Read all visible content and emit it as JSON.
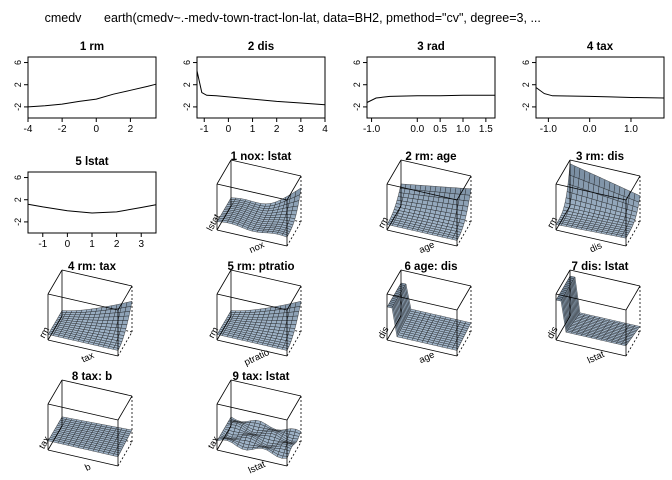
{
  "header": {
    "response": "cmedv",
    "call": "earth(cmedv~.-medv-town-tract-lon-lat, data=BH2, pmethod=\"cv\", degree=3, ..."
  },
  "chart_data": [
    {
      "type": "line",
      "title": "1  rm",
      "xlim": [
        -4,
        3.5
      ],
      "ylim": [
        -4,
        7
      ],
      "xticks": [
        "-4",
        "-2",
        "0",
        "2"
      ],
      "xtick_values": [
        -4,
        -2,
        0,
        2
      ],
      "yticks": [
        "-2",
        "2",
        "6"
      ],
      "ytick_values": [
        -2,
        2,
        6
      ],
      "x": [
        -4,
        -3,
        -2,
        -1,
        0,
        1,
        2,
        3,
        3.5
      ],
      "y": [
        -2,
        -1.8,
        -1.5,
        -1.0,
        -0.6,
        0.3,
        1.0,
        1.7,
        2.1
      ]
    },
    {
      "type": "line",
      "title": "2  dis",
      "xlim": [
        -1.3,
        4
      ],
      "ylim": [
        -4,
        7
      ],
      "xticks": [
        "-1",
        "0",
        "1",
        "2",
        "3",
        "4"
      ],
      "xtick_values": [
        -1,
        0,
        1,
        2,
        3,
        4
      ],
      "yticks": [
        "-2",
        "2",
        "6"
      ],
      "ytick_values": [
        -2,
        2,
        6
      ],
      "x": [
        -1.3,
        -1.1,
        -0.9,
        -0.5,
        0,
        1,
        2,
        3,
        4
      ],
      "y": [
        4.5,
        0.6,
        0.1,
        0.0,
        -0.2,
        -0.6,
        -1.0,
        -1.3,
        -1.6
      ]
    },
    {
      "type": "line",
      "title": "3  rad",
      "xlim": [
        -1.1,
        1.7
      ],
      "ylim": [
        -4,
        7
      ],
      "xticks": [
        "-1.0",
        "0.0",
        "0.5",
        "1.0",
        "1.5"
      ],
      "xtick_values": [
        -1,
        0,
        0.5,
        1,
        1.5
      ],
      "yticks": [
        "-2",
        "2",
        "6"
      ],
      "ytick_values": [
        -2,
        2,
        6
      ],
      "x": [
        -1.1,
        -0.9,
        -0.6,
        0,
        0.5,
        1.0,
        1.7
      ],
      "y": [
        -1.2,
        -0.4,
        -0.1,
        0.0,
        0.0,
        0.1,
        0.1
      ]
    },
    {
      "type": "line",
      "title": "4  tax",
      "xlim": [
        -1.3,
        1.8
      ],
      "ylim": [
        -4,
        7
      ],
      "xticks": [
        "-1.0",
        "0.0",
        "1.0"
      ],
      "xtick_values": [
        -1,
        0,
        1
      ],
      "yticks": [
        "-2",
        "2",
        "6"
      ],
      "ytick_values": [
        -2,
        2,
        6
      ],
      "x": [
        -1.3,
        -1.1,
        -0.9,
        0,
        0.5,
        1.0,
        1.8
      ],
      "y": [
        1.5,
        0.4,
        0.0,
        -0.1,
        -0.2,
        -0.3,
        -0.4
      ]
    },
    {
      "type": "line",
      "title": "5  lstat",
      "xlim": [
        -1.6,
        3.6
      ],
      "ylim": [
        -4,
        7
      ],
      "xticks": [
        "-1",
        "0",
        "1",
        "2",
        "3"
      ],
      "xtick_values": [
        -1,
        0,
        1,
        2,
        3
      ],
      "yticks": [
        "-2",
        "2",
        "6"
      ],
      "ytick_values": [
        -2,
        2,
        6
      ],
      "x": [
        -1.6,
        -1,
        0,
        1,
        2,
        3,
        3.6
      ],
      "y": [
        1.2,
        0.7,
        0.0,
        -0.4,
        -0.2,
        0.6,
        1.1
      ]
    },
    {
      "type": "surface",
      "title": "1 nox: lstat",
      "xlabel": "nox",
      "ylabel": "lstat",
      "shape": "flat_high_corner"
    },
    {
      "type": "surface",
      "title": "2 rm: age",
      "xlabel": "age",
      "ylabel": "rm",
      "shape": "rising_ridge"
    },
    {
      "type": "surface",
      "title": "3 rm: dis",
      "xlabel": "dis",
      "ylabel": "rm",
      "shape": "tall_wall"
    },
    {
      "type": "surface",
      "title": "4 rm: tax",
      "xlabel": "tax",
      "ylabel": "rm",
      "shape": "rising_corner"
    },
    {
      "type": "surface",
      "title": "5 rm: ptratio",
      "xlabel": "ptratio",
      "ylabel": "rm",
      "shape": "rising_corner"
    },
    {
      "type": "surface",
      "title": "6 age: dis",
      "xlabel": "age",
      "ylabel": "dis",
      "shape": "back_wall"
    },
    {
      "type": "surface",
      "title": "7 dis: lstat",
      "xlabel": "lstat",
      "ylabel": "dis",
      "shape": "back_wall_high"
    },
    {
      "type": "surface",
      "title": "8 tax: b",
      "xlabel": "b",
      "ylabel": "tax",
      "shape": "flat"
    },
    {
      "type": "surface",
      "title": "9 tax: lstat",
      "xlabel": "lstat",
      "ylabel": "tax",
      "shape": "wavy_flat"
    }
  ]
}
